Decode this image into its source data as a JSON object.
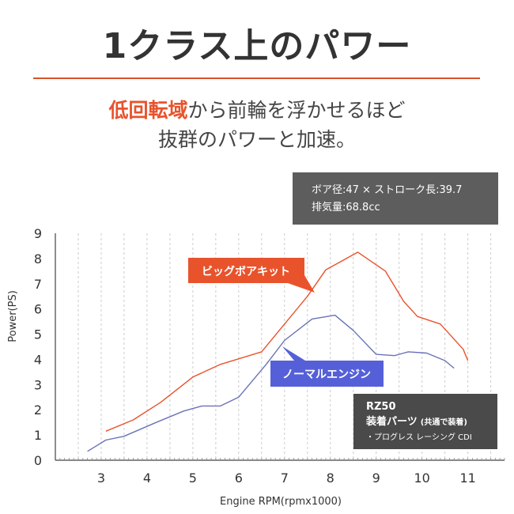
{
  "header": {
    "title": "1クラス上のパワー",
    "subtitle_highlight": "低回転域",
    "subtitle_rest": "から前輪を浮かせるほど",
    "subtitle_line2": "抜群のパワーと加速。"
  },
  "spec_box": {
    "line1": "ボア径:47 × ストローク長:39.7",
    "line2": "排気量:68.8cc"
  },
  "info_box": {
    "model": "RZ50",
    "parts_label": "装着パーツ",
    "parts_note": "(共通で装着)",
    "part_item": "・プログレス レーシング CDI"
  },
  "colors": {
    "big_bore": "#e8532c",
    "normal": "#5560d8",
    "normal_line": "#6a72b8"
  },
  "chart_data": {
    "type": "line",
    "xlabel": "Engine RPM(rpmx1000)",
    "ylabel": "Power(PS)",
    "xlim": [
      2,
      11.8
    ],
    "ylim": [
      0,
      9
    ],
    "x_ticks": [
      3,
      4,
      5,
      6,
      7,
      8,
      9,
      10,
      11
    ],
    "y_ticks": [
      0,
      1,
      2,
      3,
      4,
      5,
      6,
      7,
      8,
      9
    ],
    "grid": "vertical-dashed",
    "series": [
      {
        "name": "ビッグボアキット",
        "color": "#e8532c",
        "points": [
          [
            3.1,
            1.15
          ],
          [
            3.7,
            1.6
          ],
          [
            4.3,
            2.3
          ],
          [
            5.0,
            3.3
          ],
          [
            5.6,
            3.8
          ],
          [
            6.5,
            4.3
          ],
          [
            7.0,
            5.4
          ],
          [
            7.5,
            6.5
          ],
          [
            7.9,
            7.55
          ],
          [
            8.6,
            8.25
          ],
          [
            9.2,
            7.5
          ],
          [
            9.6,
            6.3
          ],
          [
            9.9,
            5.7
          ],
          [
            10.4,
            5.4
          ],
          [
            10.9,
            4.4
          ],
          [
            11.0,
            3.95
          ]
        ]
      },
      {
        "name": "ノーマルエンジン",
        "color": "#6a72b8",
        "points": [
          [
            2.7,
            0.35
          ],
          [
            3.1,
            0.8
          ],
          [
            3.5,
            0.95
          ],
          [
            4.2,
            1.5
          ],
          [
            4.8,
            1.95
          ],
          [
            5.2,
            2.15
          ],
          [
            5.6,
            2.15
          ],
          [
            6.0,
            2.5
          ],
          [
            6.6,
            3.8
          ],
          [
            7.0,
            4.75
          ],
          [
            7.6,
            5.6
          ],
          [
            8.1,
            5.75
          ],
          [
            8.5,
            5.15
          ],
          [
            9.0,
            4.2
          ],
          [
            9.4,
            4.15
          ],
          [
            9.7,
            4.3
          ],
          [
            10.1,
            4.25
          ],
          [
            10.5,
            3.95
          ],
          [
            10.7,
            3.65
          ]
        ]
      }
    ]
  }
}
